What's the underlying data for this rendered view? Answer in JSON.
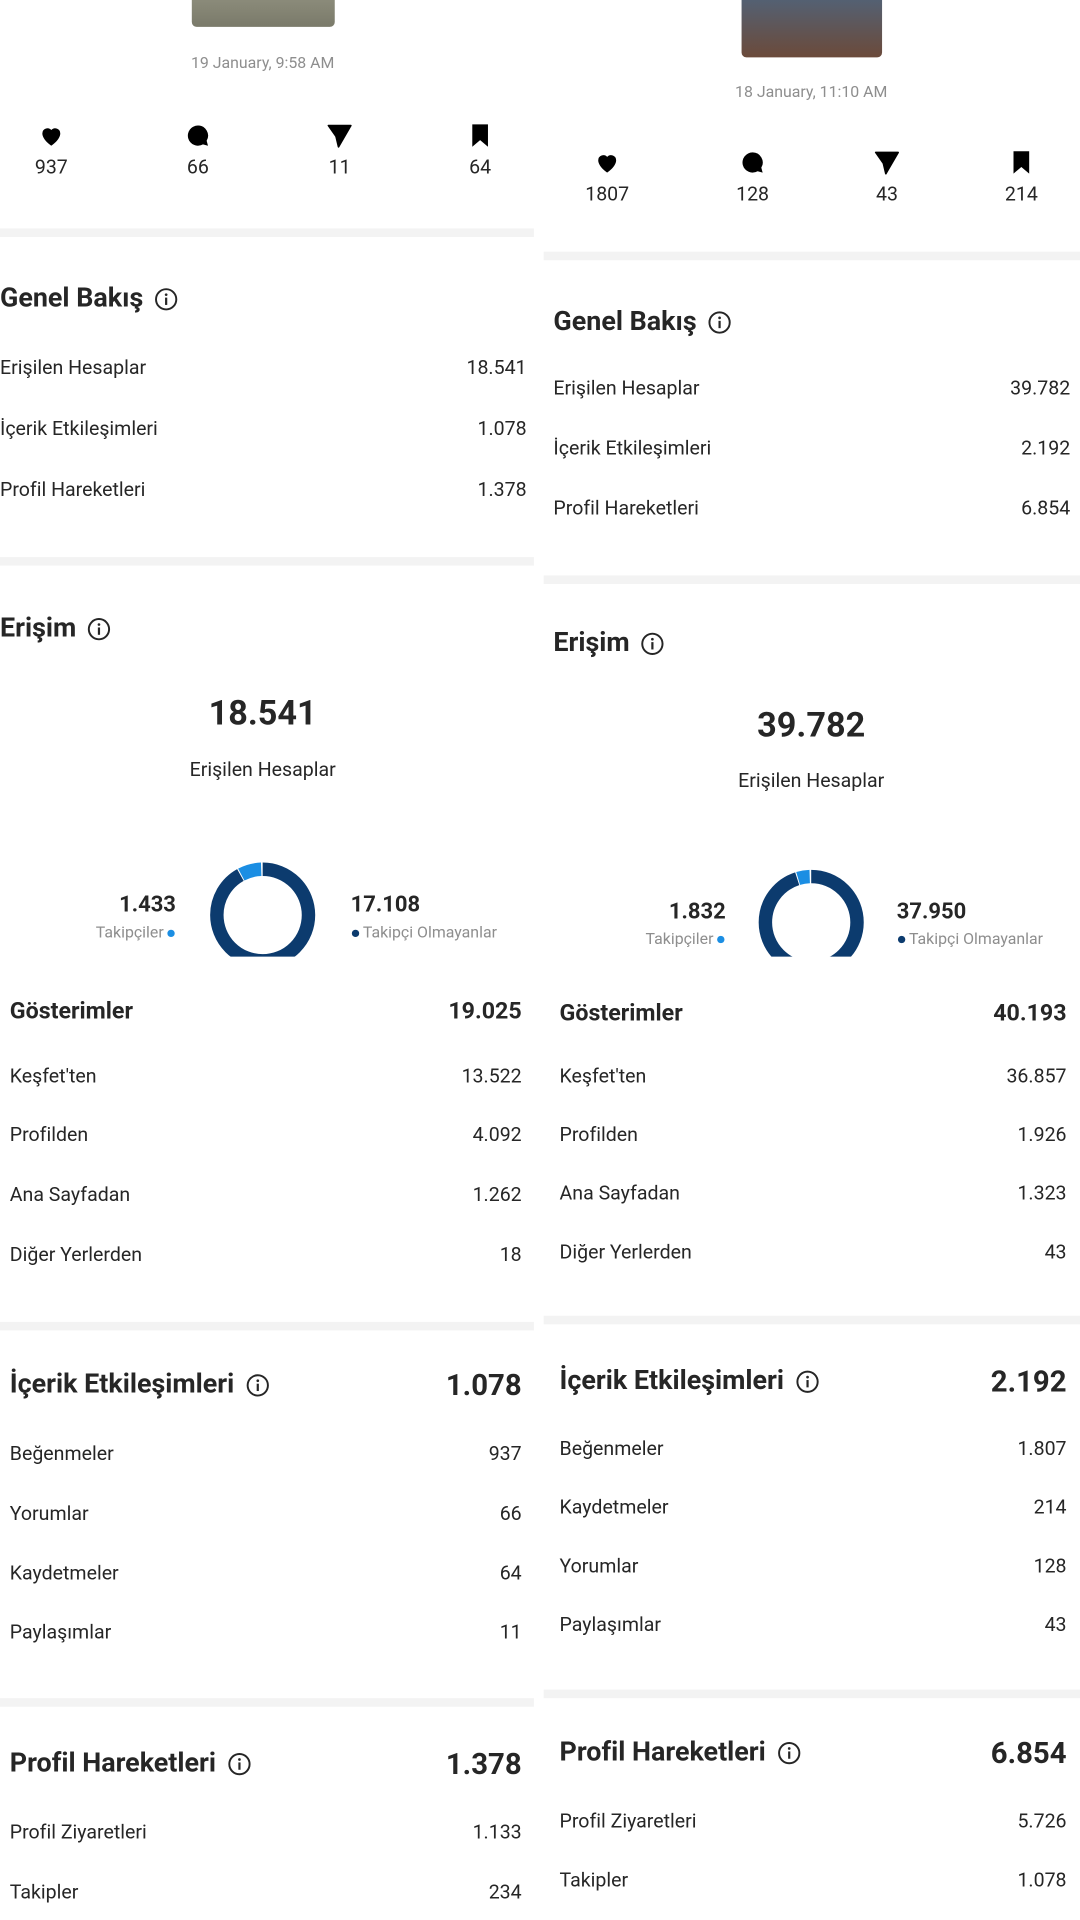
{
  "panels": [
    {
      "date": "19 January, 9:58 AM",
      "stats": [
        "937",
        "66",
        "11",
        "64"
      ],
      "overview": {
        "title": "Genel Bakış",
        "rows": [
          {
            "label": "Erişilen Hesaplar",
            "value": "18.541"
          },
          {
            "label": "İçerik Etkileşimleri",
            "value": "1.078"
          },
          {
            "label": "Profil Hareketleri",
            "value": "1.378"
          }
        ]
      },
      "reach": {
        "title": "Erişim",
        "total": "18.541",
        "total_label": "Erişilen Hesaplar",
        "followers": {
          "value": "1.433",
          "label": "Takipçiler"
        },
        "non_followers": {
          "value": "17.108",
          "label": "Takipçi Olmayanlar"
        }
      },
      "impressions": {
        "title": "Gösterimler",
        "total": "19.025",
        "rows": [
          {
            "label": "Keşfet'ten",
            "value": "13.522"
          },
          {
            "label": "Profilden",
            "value": "4.092"
          },
          {
            "label": "Ana Sayfadan",
            "value": "1.262"
          },
          {
            "label": "Diğer Yerlerden",
            "value": "18"
          }
        ]
      },
      "interactions": {
        "title": "İçerik Etkileşimleri",
        "total": "1.078",
        "rows": [
          {
            "label": "Beğenmeler",
            "value": "937"
          },
          {
            "label": "Yorumlar",
            "value": "66"
          },
          {
            "label": "Kaydetmeler",
            "value": "64"
          },
          {
            "label": "Paylaşımlar",
            "value": "11"
          }
        ]
      },
      "profile": {
        "title": "Profil Hareketleri",
        "total": "1.378",
        "rows": [
          {
            "label": "Profil Ziyaretleri",
            "value": "1.133"
          },
          {
            "label": "Takipler",
            "value": "234"
          }
        ]
      }
    },
    {
      "date": "18 January, 11:10 AM",
      "stats": [
        "1807",
        "128",
        "43",
        "214"
      ],
      "overview": {
        "title": "Genel Bakış",
        "rows": [
          {
            "label": "Erişilen Hesaplar",
            "value": "39.782"
          },
          {
            "label": "İçerik Etkileşimleri",
            "value": "2.192"
          },
          {
            "label": "Profil Hareketleri",
            "value": "6.854"
          }
        ]
      },
      "reach": {
        "title": "Erişim",
        "total": "39.782",
        "total_label": "Erişilen Hesaplar",
        "followers": {
          "value": "1.832",
          "label": "Takipçiler"
        },
        "non_followers": {
          "value": "37.950",
          "label": "Takipçi Olmayanlar"
        }
      },
      "impressions": {
        "title": "Gösterimler",
        "total": "40.193",
        "rows": [
          {
            "label": "Keşfet'ten",
            "value": "36.857"
          },
          {
            "label": "Profilden",
            "value": "1.926"
          },
          {
            "label": "Ana Sayfadan",
            "value": "1.323"
          },
          {
            "label": "Diğer Yerlerden",
            "value": "43"
          }
        ]
      },
      "interactions": {
        "title": "İçerik Etkileşimleri",
        "total": "2.192",
        "rows": [
          {
            "label": "Beğenmeler",
            "value": "1.807"
          },
          {
            "label": "Kaydetmeler",
            "value": "214"
          },
          {
            "label": "Yorumlar",
            "value": "128"
          },
          {
            "label": "Paylaşımlar",
            "value": "43"
          }
        ]
      },
      "profile": {
        "title": "Profil Hareketleri",
        "total": "6.854",
        "rows": [
          {
            "label": "Profil Ziyaretleri",
            "value": "5.726"
          },
          {
            "label": "Takipler",
            "value": "1.078"
          }
        ]
      }
    }
  ]
}
